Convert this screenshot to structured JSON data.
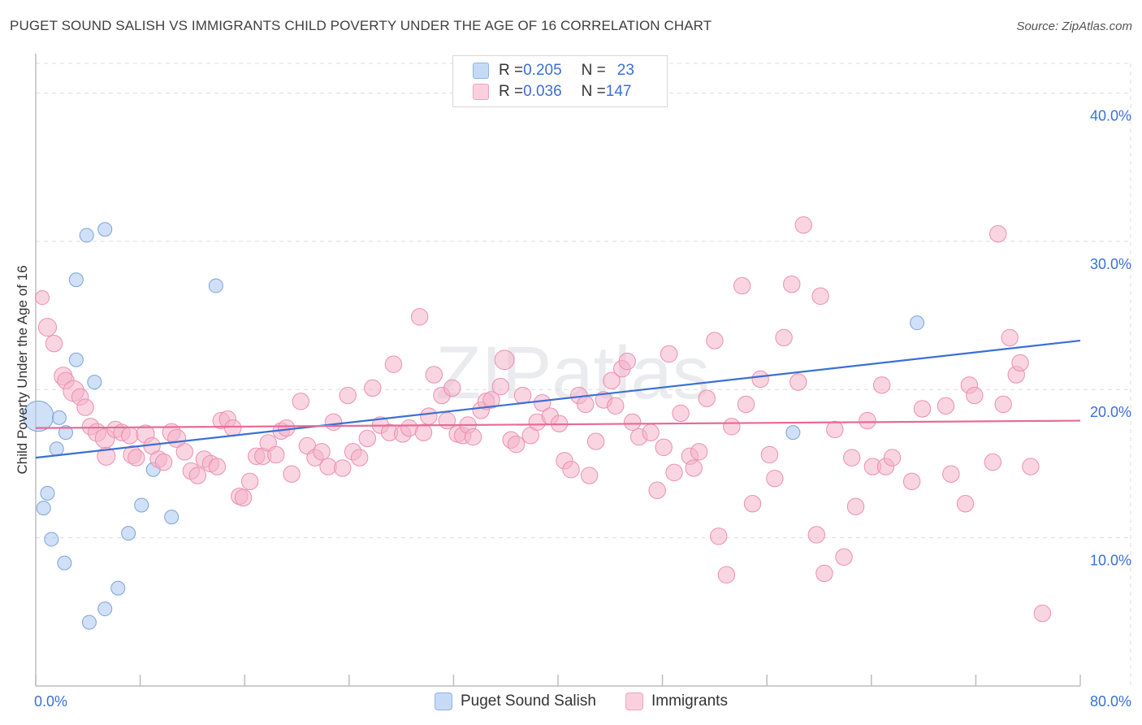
{
  "title": "PUGET SOUND SALISH VS IMMIGRANTS CHILD POVERTY UNDER THE AGE OF 16 CORRELATION CHART",
  "source": "Source: ZipAtlas.com",
  "watermark": "ZIPatlas",
  "legend": {
    "rows": [
      {
        "r_label": "R = ",
        "r_value": "0.205",
        "n_label": "N = ",
        "n_value": "23",
        "color": "#a9c6ef"
      },
      {
        "r_label": "R = ",
        "r_value": "0.036",
        "n_label": "N = ",
        "n_value": "147",
        "color": "#f4b3c8"
      }
    ]
  },
  "bottom_legend": [
    {
      "label": "Puget Sound Salish",
      "color": "#a9c6ef"
    },
    {
      "label": "Immigrants",
      "color": "#f4b3c8"
    }
  ],
  "chart_data": {
    "type": "scatter",
    "title": "PUGET SOUND SALISH VS IMMIGRANTS CHILD POVERTY UNDER THE AGE OF 16 CORRELATION CHART",
    "xlabel": "",
    "ylabel": "Child Poverty Under the Age of 16",
    "xlim": [
      0,
      80
    ],
    "ylim": [
      0,
      42
    ],
    "x_tick_labels": [
      {
        "value": 0,
        "label": "0.0%"
      },
      {
        "value": 80,
        "label": "80.0%"
      }
    ],
    "y_tick_labels": [
      {
        "value": 10,
        "label": "10.0%"
      },
      {
        "value": 20,
        "label": "20.0%"
      },
      {
        "value": 30,
        "label": "30.0%"
      },
      {
        "value": 40,
        "label": "40.0%"
      }
    ],
    "x_minor_ticks": [
      0,
      8,
      16,
      24,
      32,
      40,
      48,
      56,
      64,
      72,
      80
    ],
    "grid": true,
    "legend_position": "top-center",
    "series": [
      {
        "name": "Puget Sound Salish",
        "color": "#a9c6ef",
        "stroke": "#7aa4de",
        "trend_color": "#3a70d6",
        "trend": {
          "x": [
            0,
            80
          ],
          "y": [
            15.4,
            23.3
          ]
        },
        "points": [
          [
            0.2,
            18.2,
            2.2
          ],
          [
            1.8,
            18.1,
            1
          ],
          [
            2.3,
            17.1,
            1
          ],
          [
            1.6,
            16.0,
            1
          ],
          [
            0.6,
            12.0,
            1
          ],
          [
            0.9,
            13.0,
            1
          ],
          [
            1.2,
            9.9,
            1
          ],
          [
            2.2,
            8.3,
            1
          ],
          [
            3.1,
            22.0,
            1
          ],
          [
            3.1,
            27.4,
            1
          ],
          [
            3.9,
            30.4,
            1
          ],
          [
            5.3,
            30.8,
            1
          ],
          [
            4.5,
            20.5,
            1
          ],
          [
            5.3,
            5.2,
            1
          ],
          [
            4.1,
            4.3,
            1
          ],
          [
            6.3,
            6.6,
            1
          ],
          [
            7.1,
            10.3,
            1
          ],
          [
            8.1,
            12.2,
            1
          ],
          [
            9.0,
            14.6,
            1
          ],
          [
            10.4,
            11.4,
            1
          ],
          [
            13.8,
            27.0,
            1
          ],
          [
            58.0,
            17.1,
            1
          ],
          [
            67.5,
            24.5,
            1
          ]
        ]
      },
      {
        "name": "Immigrants",
        "color": "#f4b3c8",
        "stroke": "#ec8fb0",
        "trend_color": "#e86a95",
        "trend": {
          "x": [
            0,
            80
          ],
          "y": [
            17.4,
            17.9
          ]
        },
        "points": [
          [
            0.5,
            26.2,
            1
          ],
          [
            0.9,
            24.2,
            1.3
          ],
          [
            1.4,
            23.1,
            1.2
          ],
          [
            2.1,
            20.9,
            1.3
          ],
          [
            2.3,
            20.6,
            1.2
          ],
          [
            2.9,
            19.9,
            1.5
          ],
          [
            3.4,
            19.5,
            1.2
          ],
          [
            3.8,
            18.8,
            1.2
          ],
          [
            4.2,
            17.5,
            1.2
          ],
          [
            4.7,
            17.1,
            1.3
          ],
          [
            5.3,
            16.7,
            1.4
          ],
          [
            5.4,
            15.5,
            1.3
          ],
          [
            6.1,
            17.3,
            1.2
          ],
          [
            6.6,
            17.1,
            1.2
          ],
          [
            7.2,
            16.9,
            1.2
          ],
          [
            7.4,
            15.6,
            1.3
          ],
          [
            7.7,
            15.4,
            1.2
          ],
          [
            8.4,
            17.0,
            1.3
          ],
          [
            8.9,
            16.2,
            1.2
          ],
          [
            9.4,
            15.3,
            1.2
          ],
          [
            9.8,
            15.1,
            1.2
          ],
          [
            10.4,
            17.1,
            1.3
          ],
          [
            10.8,
            16.7,
            1.3
          ],
          [
            11.4,
            15.8,
            1.2
          ],
          [
            11.9,
            14.5,
            1.2
          ],
          [
            12.4,
            14.2,
            1.2
          ],
          [
            12.9,
            15.3,
            1.2
          ],
          [
            13.4,
            15.0,
            1.2
          ],
          [
            13.9,
            14.8,
            1.2
          ],
          [
            14.2,
            17.9,
            1.2
          ],
          [
            14.7,
            18.0,
            1.2
          ],
          [
            15.1,
            17.4,
            1.2
          ],
          [
            15.6,
            12.8,
            1.2
          ],
          [
            15.9,
            12.7,
            1.2
          ],
          [
            16.4,
            13.8,
            1.2
          ],
          [
            16.9,
            15.5,
            1.2
          ],
          [
            17.4,
            15.5,
            1.2
          ],
          [
            17.8,
            16.4,
            1.2
          ],
          [
            18.4,
            15.6,
            1.2
          ],
          [
            18.8,
            17.2,
            1.2
          ],
          [
            19.2,
            17.4,
            1.2
          ],
          [
            19.6,
            14.3,
            1.2
          ],
          [
            20.3,
            19.2,
            1.2
          ],
          [
            20.8,
            16.2,
            1.2
          ],
          [
            21.4,
            15.4,
            1.2
          ],
          [
            21.9,
            15.8,
            1.2
          ],
          [
            22.4,
            14.8,
            1.2
          ],
          [
            22.8,
            17.8,
            1.2
          ],
          [
            23.5,
            14.7,
            1.2
          ],
          [
            23.9,
            19.6,
            1.2
          ],
          [
            24.3,
            15.8,
            1.2
          ],
          [
            24.8,
            15.4,
            1.2
          ],
          [
            25.4,
            16.7,
            1.2
          ],
          [
            25.8,
            20.1,
            1.2
          ],
          [
            26.4,
            17.6,
            1.2
          ],
          [
            27.1,
            17.1,
            1.2
          ],
          [
            27.4,
            21.7,
            1.2
          ],
          [
            28.1,
            17.0,
            1.2
          ],
          [
            28.6,
            17.4,
            1.2
          ],
          [
            29.4,
            24.9,
            1.2
          ],
          [
            29.7,
            17.1,
            1.2
          ],
          [
            30.1,
            18.2,
            1.2
          ],
          [
            30.5,
            21.0,
            1.2
          ],
          [
            31.1,
            19.6,
            1.2
          ],
          [
            31.5,
            17.9,
            1.2
          ],
          [
            31.9,
            20.1,
            1.2
          ],
          [
            32.3,
            17.0,
            1.2
          ],
          [
            32.7,
            16.9,
            1.2
          ],
          [
            33.1,
            17.6,
            1.2
          ],
          [
            33.5,
            16.8,
            1.2
          ],
          [
            34.1,
            18.6,
            1.2
          ],
          [
            34.5,
            19.2,
            1.2
          ],
          [
            34.9,
            19.3,
            1.2
          ],
          [
            35.6,
            20.2,
            1.2
          ],
          [
            35.9,
            22.0,
            1.4
          ],
          [
            36.4,
            16.6,
            1.2
          ],
          [
            36.8,
            16.3,
            1.2
          ],
          [
            37.3,
            19.6,
            1.2
          ],
          [
            37.9,
            16.9,
            1.2
          ],
          [
            38.4,
            17.8,
            1.2
          ],
          [
            38.8,
            19.1,
            1.2
          ],
          [
            39.4,
            18.2,
            1.2
          ],
          [
            40.1,
            17.7,
            1.2
          ],
          [
            40.5,
            15.2,
            1.2
          ],
          [
            41.0,
            14.6,
            1.2
          ],
          [
            41.6,
            19.6,
            1.2
          ],
          [
            42.1,
            19.0,
            1.2
          ],
          [
            42.4,
            14.2,
            1.2
          ],
          [
            42.9,
            16.5,
            1.2
          ],
          [
            43.5,
            19.3,
            1.2
          ],
          [
            44.1,
            20.6,
            1.2
          ],
          [
            44.4,
            18.9,
            1.2
          ],
          [
            44.9,
            21.4,
            1.2
          ],
          [
            45.3,
            21.9,
            1.2
          ],
          [
            45.7,
            17.8,
            1.2
          ],
          [
            46.2,
            16.8,
            1.2
          ],
          [
            47.1,
            17.1,
            1.2
          ],
          [
            47.6,
            13.2,
            1.2
          ],
          [
            48.1,
            16.1,
            1.2
          ],
          [
            48.5,
            22.4,
            1.2
          ],
          [
            48.9,
            14.4,
            1.2
          ],
          [
            49.4,
            18.4,
            1.2
          ],
          [
            50.1,
            15.5,
            1.2
          ],
          [
            50.4,
            14.7,
            1.2
          ],
          [
            50.8,
            15.8,
            1.2
          ],
          [
            51.4,
            19.4,
            1.2
          ],
          [
            52.0,
            23.3,
            1.2
          ],
          [
            52.3,
            10.1,
            1.2
          ],
          [
            52.9,
            7.5,
            1.2
          ],
          [
            53.3,
            17.5,
            1.2
          ],
          [
            54.1,
            27.0,
            1.2
          ],
          [
            54.4,
            19.0,
            1.2
          ],
          [
            54.9,
            12.3,
            1.2
          ],
          [
            55.5,
            20.7,
            1.2
          ],
          [
            56.2,
            15.6,
            1.2
          ],
          [
            56.6,
            14.0,
            1.2
          ],
          [
            57.3,
            23.5,
            1.2
          ],
          [
            57.9,
            27.1,
            1.2
          ],
          [
            58.4,
            20.5,
            1.2
          ],
          [
            58.8,
            31.1,
            1.2
          ],
          [
            59.8,
            10.2,
            1.2
          ],
          [
            60.1,
            26.3,
            1.2
          ],
          [
            60.4,
            7.6,
            1.2
          ],
          [
            61.2,
            17.3,
            1.2
          ],
          [
            61.9,
            8.7,
            1.2
          ],
          [
            62.5,
            15.4,
            1.2
          ],
          [
            62.8,
            12.1,
            1.2
          ],
          [
            63.7,
            17.9,
            1.2
          ],
          [
            64.1,
            14.8,
            1.2
          ],
          [
            64.8,
            20.3,
            1.2
          ],
          [
            65.1,
            14.8,
            1.2
          ],
          [
            65.6,
            15.4,
            1.2
          ],
          [
            67.1,
            13.8,
            1.2
          ],
          [
            67.9,
            18.7,
            1.2
          ],
          [
            69.7,
            18.9,
            1.2
          ],
          [
            70.1,
            14.3,
            1.2
          ],
          [
            71.2,
            12.3,
            1.2
          ],
          [
            71.5,
            20.3,
            1.2
          ],
          [
            71.9,
            19.6,
            1.2
          ],
          [
            73.3,
            15.1,
            1.2
          ],
          [
            73.7,
            30.5,
            1.2
          ],
          [
            74.1,
            19.0,
            1.2
          ],
          [
            74.6,
            23.5,
            1.2
          ],
          [
            75.1,
            21.0,
            1.2
          ],
          [
            75.4,
            21.8,
            1.2
          ],
          [
            76.2,
            14.8,
            1.2
          ],
          [
            77.1,
            4.9,
            1.2
          ]
        ]
      }
    ]
  }
}
